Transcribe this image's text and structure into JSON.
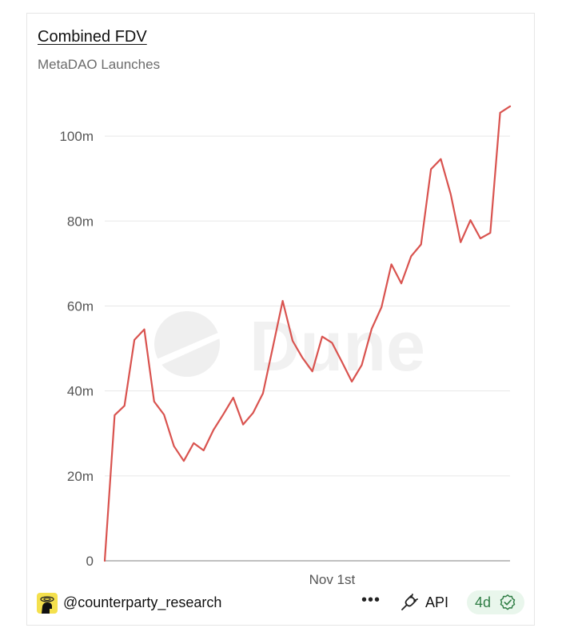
{
  "header": {
    "title": "Combined FDV",
    "subtitle": "MetaDAO Launches"
  },
  "watermark": "Dune",
  "footer": {
    "handle": "@counterparty_research",
    "more": "•••",
    "api_label": "API",
    "age_badge": "4d",
    "icons": [
      "avatar-icon",
      "api-plug-icon",
      "verified-check-icon"
    ]
  },
  "chart_data": {
    "type": "line",
    "title": "Combined FDV",
    "subtitle": "MetaDAO Launches",
    "xlabel": "",
    "ylabel": "",
    "x_tick_labels": [
      {
        "label": "Nov 1st",
        "index": 23
      }
    ],
    "y_ticks": [
      0,
      20000000,
      40000000,
      60000000,
      80000000,
      100000000
    ],
    "y_tick_labels": [
      "0",
      "20m",
      "40m",
      "60m",
      "80m",
      "100m"
    ],
    "ylim": [
      0,
      110000000
    ],
    "grid": true,
    "legend": "none",
    "series": [
      {
        "color": "#d9534f",
        "values": [
          0,
          34300000,
          36500000,
          52000000,
          54500000,
          37500000,
          34400000,
          27000000,
          23500000,
          27700000,
          26000000,
          30800000,
          34500000,
          38400000,
          32100000,
          34800000,
          39400000,
          50200000,
          61200000,
          51800000,
          47800000,
          44600000,
          52800000,
          51300000,
          46800000,
          42200000,
          46100000,
          54600000,
          59700000,
          69800000,
          65300000,
          71700000,
          74500000,
          92200000,
          94600000,
          86300000,
          75000000,
          80200000,
          75900000,
          77200000,
          105500000,
          107000000
        ]
      }
    ]
  }
}
